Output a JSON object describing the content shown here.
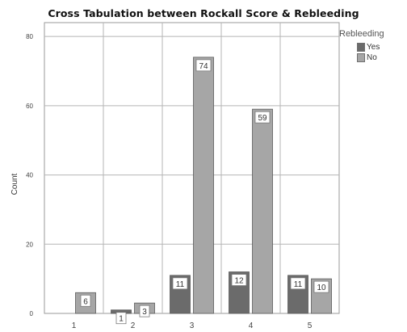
{
  "chart_data": {
    "type": "bar",
    "title": "Cross Tabulation between Rockall Score & Rebleeding",
    "xlabel": "",
    "ylabel": "Count",
    "categories": [
      "1",
      "2",
      "3",
      "4",
      "5"
    ],
    "series": [
      {
        "name": "Yes",
        "values": [
          0,
          1,
          11,
          12,
          11
        ],
        "color": "#6b6b6b"
      },
      {
        "name": "No",
        "values": [
          6,
          3,
          74,
          59,
          10
        ],
        "color": "#a6a6a6"
      }
    ],
    "data_labels": [
      [
        null,
        "1",
        "11",
        "12",
        "11"
      ],
      [
        "6",
        "3",
        "74",
        "59",
        "10"
      ]
    ],
    "ylim": [
      0,
      84
    ],
    "yticks": [
      0,
      20,
      40,
      60,
      80
    ],
    "grid": true,
    "legend": {
      "title": "Rebleeding",
      "position": "top-right"
    }
  }
}
